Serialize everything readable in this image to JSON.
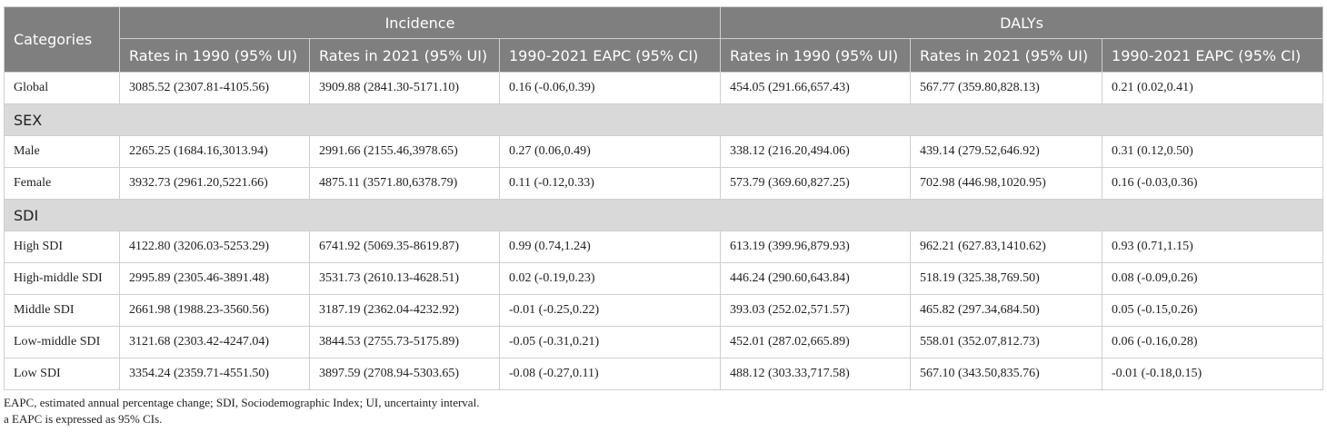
{
  "header": {
    "categories": "Categories",
    "incidence": "Incidence",
    "dalys": "DALYs",
    "sub": [
      "Rates in 1990 (95% UI)",
      "Rates in 2021 (95% UI)",
      "1990-2021 EAPC (95% CI)",
      "Rates in 1990 (95% UI)",
      "Rates in 2021 (95% UI)",
      "1990-2021 EAPC (95% CI)"
    ]
  },
  "rows": [
    {
      "cells": [
        "Global",
        "3085.52 (2307.81-4105.56)",
        "3909.88 (2841.30-5171.10)",
        "0.16 (-0.06,0.39)",
        "454.05 (291.66,657.43)",
        "567.77 (359.80,828.13)",
        "0.21 (0.02,0.41)"
      ]
    },
    {
      "section": "SEX"
    },
    {
      "cells": [
        "Male",
        "2265.25 (1684.16,3013.94)",
        "2991.66 (2155.46,3978.65)",
        "0.27 (0.06,0.49)",
        "338.12 (216.20,494.06)",
        "439.14 (279.52,646.92)",
        "0.31 (0.12,0.50)"
      ]
    },
    {
      "cells": [
        "Female",
        "3932.73 (2961.20,5221.66)",
        "4875.11 (3571.80,6378.79)",
        "0.11 (-0.12,0.33)",
        "573.79 (369.60,827.25)",
        "702.98 (446.98,1020.95)",
        "0.16 (-0.03,0.36)"
      ]
    },
    {
      "section": "SDI"
    },
    {
      "cells": [
        "High SDI",
        "4122.80 (3206.03-5253.29)",
        "6741.92 (5069.35-8619.87)",
        "0.99 (0.74,1.24)",
        "613.19 (399.96,879.93)",
        "962.21 (627.83,1410.62)",
        "0.93 (0.71,1.15)"
      ]
    },
    {
      "cells": [
        "High-middle SDI",
        "2995.89 (2305.46-3891.48)",
        "3531.73 (2610.13-4628.51)",
        "0.02 (-0.19,0.23)",
        "446.24 (290.60,643.84)",
        "518.19 (325.38,769.50)",
        "0.08 (-0.09,0.26)"
      ]
    },
    {
      "cells": [
        "Middle SDI",
        "2661.98 (1988.23-3560.56)",
        "3187.19 (2362.04-4232.92)",
        "-0.01 (-0.25,0.22)",
        "393.03 (252.02,571.57)",
        "465.82 (297.34,684.50)",
        "0.05 (-0.15,0.26)"
      ]
    },
    {
      "cells": [
        "Low-middle SDI",
        "3121.68 (2303.42-4247.04)",
        "3844.53 (2755.73-5175.89)",
        "-0.05 (-0.31,0.21)",
        "452.01 (287.02,665.89)",
        "558.01 (352.07,812.73)",
        "0.06 (-0.16,0.28)"
      ]
    },
    {
      "cells": [
        "Low SDI",
        "3354.24 (2359.71-4551.50)",
        "3897.59 (2708.94-5303.65)",
        "-0.08 (-0.27,0.11)",
        "488.12 (303.33,717.58)",
        "567.10 (343.50,835.76)",
        "-0.01 (-0.18,0.15)"
      ]
    }
  ],
  "notes": [
    "EAPC, estimated annual percentage change; SDI, Sociodemographic Index; UI, uncertainty interval.",
    "a EAPC is expressed as 95% CIs."
  ]
}
